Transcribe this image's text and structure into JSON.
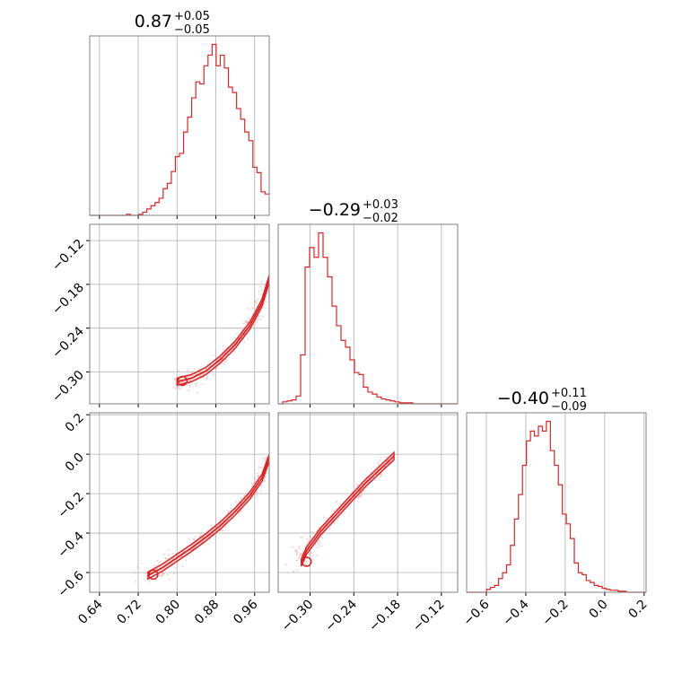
{
  "colors": {
    "series": "#d62728",
    "scatter": "#f2a4a4",
    "grid": "#b0b0b0",
    "frame": "#808080"
  },
  "chart_data": {
    "type": "corner",
    "parameters": [
      {
        "range": [
          0.62,
          0.99
        ],
        "ticks": [
          "0.64",
          "0.72",
          "0.80",
          "0.88",
          "0.96"
        ],
        "tick_values": [
          0.64,
          0.72,
          0.8,
          0.88,
          0.96
        ]
      },
      {
        "range": [
          -0.3437,
          -0.0977
        ],
        "ticks": [
          "−0.30",
          "−0.24",
          "−0.18",
          "−0.12"
        ],
        "tick_values": [
          -0.3,
          -0.24,
          -0.18,
          -0.12
        ]
      },
      {
        "range": [
          -0.7,
          0.21
        ],
        "ticks": [
          "−0.6",
          "−0.4",
          "−0.2",
          "0.0",
          "0.2"
        ],
        "tick_values": [
          -0.6,
          -0.4,
          -0.2,
          0.0,
          0.2
        ]
      }
    ],
    "titles": [
      {
        "main": "0.87",
        "sup": "+0.05",
        "sub": "−0.05"
      },
      {
        "main": "−0.29",
        "sup": "+0.03",
        "sub": "−0.02"
      },
      {
        "main": "−0.40",
        "sup": "+0.11",
        "sub": "−0.09"
      }
    ],
    "histograms": [
      {
        "edges": [
          0.62,
          0.99
        ],
        "counts": [
          0,
          0,
          0,
          0,
          0,
          0,
          0,
          0,
          0,
          1,
          0,
          0,
          1,
          3,
          6,
          9,
          12,
          16,
          25,
          30,
          41,
          55,
          58,
          78,
          92,
          110,
          125,
          123,
          140,
          150,
          160,
          140,
          150,
          138,
          120,
          115,
          100,
          90,
          78,
          70,
          45,
          40,
          22,
          20
        ]
      },
      {
        "edges": [
          -0.3437,
          -0.0977
        ],
        "counts": [
          0,
          2,
          3,
          4,
          8,
          50,
          140,
          160,
          150,
          175,
          150,
          130,
          100,
          80,
          65,
          58,
          45,
          32,
          30,
          17,
          12,
          10,
          7,
          5,
          4,
          3,
          2,
          1,
          1,
          1,
          0,
          0,
          0,
          0,
          0,
          0,
          0,
          0,
          0,
          0
        ]
      },
      {
        "edges": [
          -0.7,
          0.21
        ],
        "counts": [
          0,
          0,
          0,
          0,
          0,
          3,
          5,
          7,
          14,
          20,
          28,
          48,
          75,
          100,
          130,
          155,
          165,
          160,
          170,
          165,
          175,
          145,
          130,
          110,
          80,
          70,
          55,
          30,
          20,
          18,
          12,
          10,
          7,
          6,
          4,
          3,
          2,
          2,
          1,
          1,
          0,
          0,
          0,
          0,
          0
        ]
      }
    ],
    "correlations": [
      {
        "x_param": 0,
        "y_param": 1,
        "ridge_x": [
          0.8,
          0.83,
          0.86,
          0.89,
          0.92,
          0.95,
          0.975,
          0.99
        ],
        "ridge_y": [
          -0.3135,
          -0.3085,
          -0.2985,
          -0.2825,
          -0.2625,
          -0.2365,
          -0.2055,
          -0.1725
        ]
      },
      {
        "x_param": 0,
        "y_param": 2,
        "ridge_x": [
          0.74,
          0.77,
          0.8,
          0.83,
          0.86,
          0.89,
          0.92,
          0.95,
          0.975,
          0.99
        ],
        "ridge_y": [
          -0.615,
          -0.575,
          -0.525,
          -0.475,
          -0.42,
          -0.36,
          -0.29,
          -0.21,
          -0.12,
          -0.02
        ]
      },
      {
        "x_param": 1,
        "y_param": 2,
        "ridge_x": [
          -0.312,
          -0.305,
          -0.295,
          -0.285,
          -0.27,
          -0.255,
          -0.24,
          -0.225,
          -0.205,
          -0.185
        ],
        "ridge_y": [
          -0.55,
          -0.49,
          -0.44,
          -0.39,
          -0.33,
          -0.27,
          -0.21,
          -0.15,
          -0.08,
          -0.01
        ]
      }
    ]
  }
}
